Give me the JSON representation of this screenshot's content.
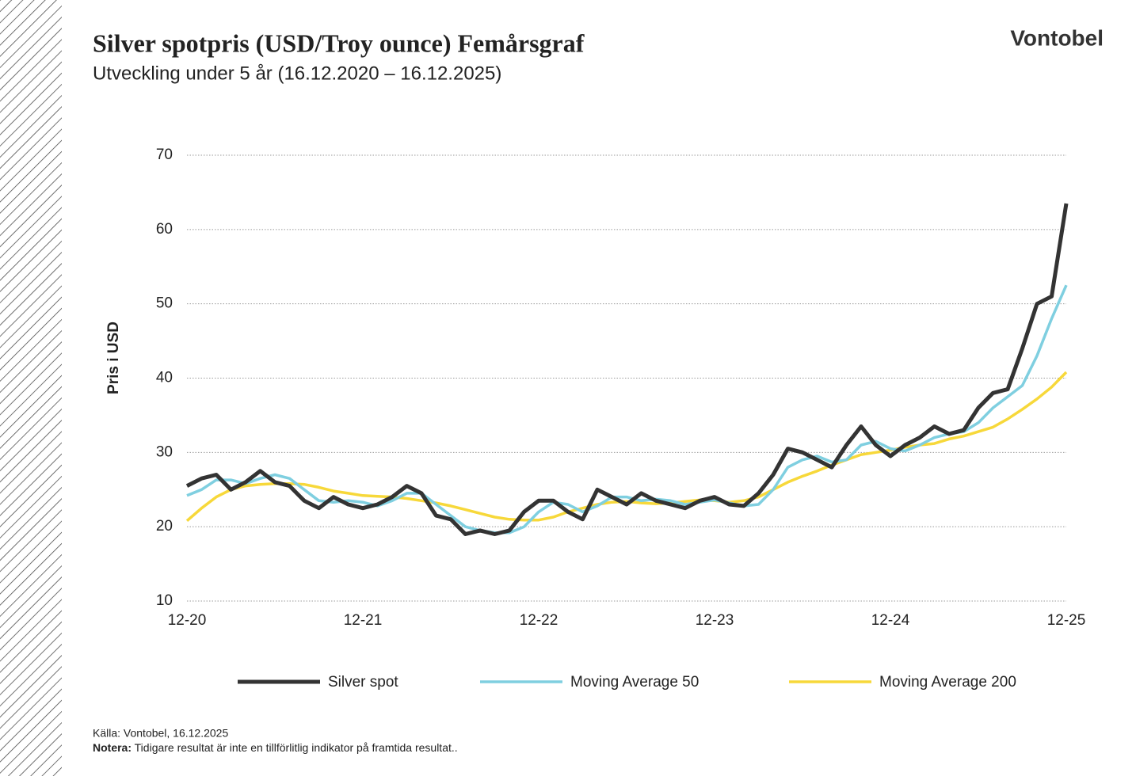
{
  "brand": "Vontobel",
  "chart_data": {
    "type": "line",
    "title": "Silver spotpris (USD/Troy ounce) Femårsgraf",
    "subtitle": "Utveckling under 5 år (16.12.2020 – 16.12.2025)",
    "ylabel": "Pris i USD",
    "x": [
      "12-20",
      "01-21",
      "02-21",
      "03-21",
      "04-21",
      "05-21",
      "06-21",
      "07-21",
      "08-21",
      "09-21",
      "10-21",
      "11-21",
      "12-21",
      "01-22",
      "02-22",
      "03-22",
      "04-22",
      "05-22",
      "06-22",
      "07-22",
      "08-22",
      "09-22",
      "10-22",
      "11-22",
      "12-22",
      "01-23",
      "02-23",
      "03-23",
      "04-23",
      "05-23",
      "06-23",
      "07-23",
      "08-23",
      "09-23",
      "10-23",
      "11-23",
      "12-23",
      "01-24",
      "02-24",
      "03-24",
      "04-24",
      "05-24",
      "06-24",
      "07-24",
      "08-24",
      "09-24",
      "10-24",
      "11-24",
      "12-24",
      "01-25",
      "02-25",
      "03-25",
      "04-25",
      "05-25",
      "06-25",
      "07-25",
      "08-25",
      "09-25",
      "10-25",
      "11-25",
      "12-25"
    ],
    "xticks": [
      "12-20",
      "12-21",
      "12-22",
      "12-23",
      "12-24",
      "12-25"
    ],
    "ylim": [
      10,
      70
    ],
    "yticks": [
      10,
      20,
      30,
      40,
      50,
      60,
      70
    ],
    "grid": true,
    "legend": "bottom",
    "series": [
      {
        "name": "Silver spot",
        "color": "#333333",
        "values": [
          25.5,
          26.5,
          27,
          25,
          26,
          27.5,
          26,
          25.5,
          23.5,
          22.5,
          24,
          23,
          22.5,
          23,
          24,
          25.5,
          24.5,
          21.5,
          21,
          19,
          19.5,
          19,
          19.5,
          22,
          23.5,
          23.5,
          22,
          21,
          25,
          24,
          23,
          24.5,
          23.5,
          23,
          22.5,
          23.5,
          24,
          23,
          22.8,
          24.5,
          27,
          30.5,
          30,
          29,
          28,
          31,
          33.5,
          31,
          29.5,
          31,
          32,
          33.5,
          32.5,
          33,
          36,
          38,
          38.5,
          44,
          50,
          51,
          63.5
        ]
      },
      {
        "name": "Moving Average 50",
        "color": "#7fcfe0",
        "values": [
          24.2,
          25,
          26.3,
          26.3,
          25.8,
          26.5,
          27,
          26.5,
          25,
          23.5,
          23.3,
          23.5,
          23.3,
          22.8,
          23.5,
          24.5,
          24.5,
          23,
          21.5,
          20,
          19.5,
          19.2,
          19.2,
          20,
          22,
          23.3,
          23,
          22,
          22.8,
          24,
          24,
          23.5,
          23.7,
          23.5,
          23,
          23.3,
          23.6,
          23.2,
          22.8,
          23,
          25,
          28,
          29,
          29.5,
          28.7,
          29,
          31,
          31.5,
          30.5,
          30.2,
          31,
          32,
          32.5,
          32.8,
          34,
          36,
          37.5,
          39,
          43,
          48,
          52.5
        ]
      },
      {
        "name": "Moving Average 200",
        "color": "#f7d83a",
        "values": [
          20.8,
          22.5,
          24,
          25,
          25.5,
          25.7,
          25.8,
          25.8,
          25.7,
          25.3,
          24.8,
          24.5,
          24.2,
          24.1,
          24,
          23.8,
          23.5,
          23.2,
          22.8,
          22.3,
          21.8,
          21.3,
          21,
          20.9,
          20.9,
          21.3,
          22,
          22.5,
          23,
          23.3,
          23.4,
          23.2,
          23.1,
          23.2,
          23.4,
          23.6,
          23.5,
          23.3,
          23.5,
          24,
          25,
          26,
          26.8,
          27.5,
          28.3,
          29,
          29.7,
          30,
          30.3,
          30.7,
          31,
          31.2,
          31.8,
          32.2,
          32.8,
          33.4,
          34.5,
          35.8,
          37.2,
          38.8,
          40.8
        ]
      }
    ]
  },
  "footer": {
    "source": "Källa: Vontobel, 16.12.2025",
    "note_label": "Notera:",
    "note": " Tidigare resultat är inte en tillförlitlig indikator på framtida resultat.."
  }
}
